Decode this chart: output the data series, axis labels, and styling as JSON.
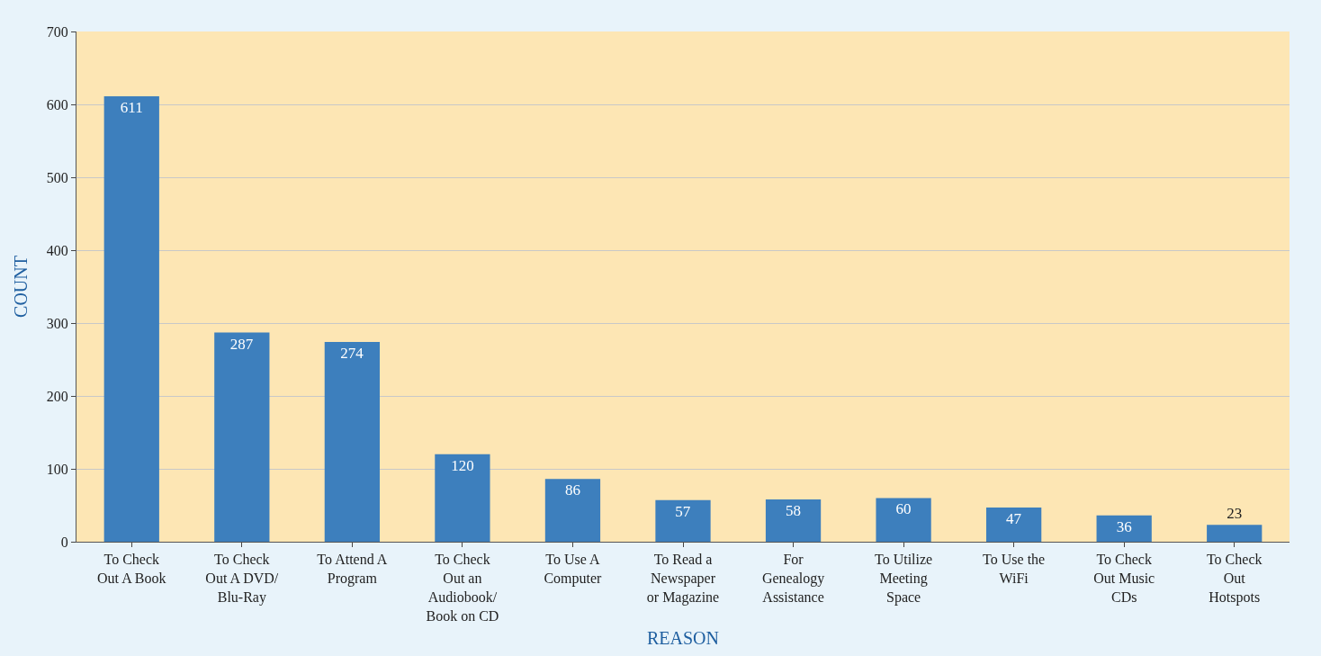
{
  "chart_data": {
    "type": "bar",
    "xlabel": "REASON",
    "ylabel": "COUNT",
    "categories": [
      "To Check Out A Book",
      "To Check Out A DVD/ Blu-Ray",
      "To Attend A Program",
      "To Check Out an Audiobook/ Book on CD",
      "To Use A Computer",
      "To Read a Newspaper or Magazine",
      "For Genealogy Assistance",
      "To Utilize Meeting Space",
      "To Use the WiFi",
      "To Check Out Music CDs",
      "To Check Out Hotspots"
    ],
    "values": [
      611,
      287,
      274,
      120,
      86,
      57,
      58,
      60,
      47,
      36,
      23
    ],
    "color": "#3d7fbd",
    "data_labels": true,
    "ylim": [
      0,
      700
    ],
    "yticks": [
      0,
      100,
      200,
      300,
      400,
      500,
      600,
      700
    ],
    "grid": "y",
    "legend": false
  }
}
